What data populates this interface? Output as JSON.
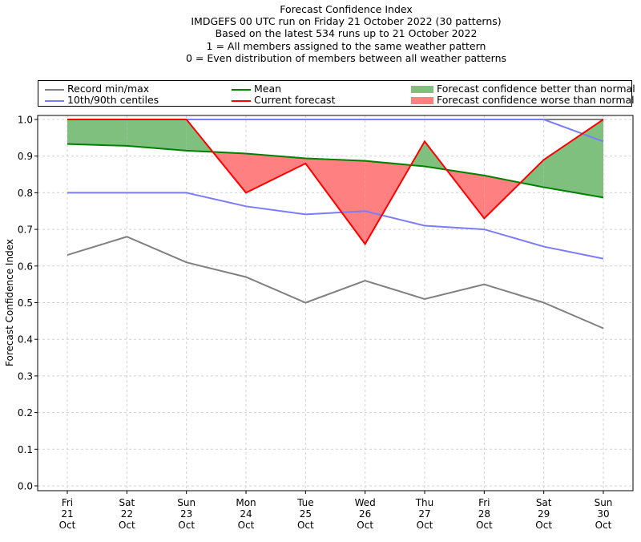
{
  "chart_data": {
    "type": "line",
    "title_lines": [
      "Forecast Confidence Index",
      "IMDGEFS 00 UTC run on Friday 21 October 2022 (30 patterns)",
      "Based on the latest 534 runs up to 21 October 2022",
      "1 = All members assigned to the same weather pattern",
      "0 = Even distribution of members between all weather patterns"
    ],
    "xlabel": "",
    "ylabel": "Forecast Confidence Index",
    "ylim": [
      0.0,
      1.0
    ],
    "yticks": [
      "0.0",
      "0.1",
      "0.2",
      "0.3",
      "0.4",
      "0.5",
      "0.6",
      "0.7",
      "0.8",
      "0.9",
      "1.0"
    ],
    "grid": true,
    "legend_position": "top",
    "categories": [
      {
        "day": "Fri",
        "date": "21",
        "month": "Oct"
      },
      {
        "day": "Sat",
        "date": "22",
        "month": "Oct"
      },
      {
        "day": "Sun",
        "date": "23",
        "month": "Oct"
      },
      {
        "day": "Mon",
        "date": "24",
        "month": "Oct"
      },
      {
        "day": "Tue",
        "date": "25",
        "month": "Oct"
      },
      {
        "day": "Wed",
        "date": "26",
        "month": "Oct"
      },
      {
        "day": "Thu",
        "date": "27",
        "month": "Oct"
      },
      {
        "day": "Fri",
        "date": "28",
        "month": "Oct"
      },
      {
        "day": "Sat",
        "date": "29",
        "month": "Oct"
      },
      {
        "day": "Sun",
        "date": "30",
        "month": "Oct"
      }
    ],
    "series": [
      {
        "name": "Record max",
        "color": "#808080",
        "values": [
          1.0,
          1.0,
          1.0,
          1.0,
          1.0,
          1.0,
          1.0,
          1.0,
          1.0,
          1.0
        ]
      },
      {
        "name": "Record min",
        "color": "#808080",
        "values": [
          0.63,
          0.68,
          0.61,
          0.57,
          0.5,
          0.56,
          0.51,
          0.55,
          0.5,
          0.43
        ]
      },
      {
        "name": "90th centile",
        "color": "#7b7bff",
        "values": [
          1.0,
          1.0,
          1.0,
          1.0,
          1.0,
          1.0,
          1.0,
          1.0,
          1.0,
          0.94
        ]
      },
      {
        "name": "10th centile",
        "color": "#7b7bff",
        "values": [
          0.8,
          0.8,
          0.8,
          0.763,
          0.741,
          0.75,
          0.71,
          0.7,
          0.653,
          0.62
        ]
      },
      {
        "name": "Mean",
        "color": "#008000",
        "values": [
          0.933,
          0.928,
          0.915,
          0.907,
          0.894,
          0.887,
          0.872,
          0.847,
          0.815,
          0.787
        ]
      },
      {
        "name": "Current forecast",
        "color": "#ff0000",
        "values": [
          1.0,
          1.0,
          1.0,
          0.8,
          0.88,
          0.66,
          0.94,
          0.73,
          0.89,
          1.0
        ]
      }
    ],
    "fill_colors": {
      "better": "#7fc07f",
      "worse": "#ff8080"
    },
    "legend": [
      {
        "label": "Record min/max",
        "type": "line",
        "color": "#808080"
      },
      {
        "label": "10th/90th centiles",
        "type": "line",
        "color": "#7b7bff"
      },
      {
        "label": "Mean",
        "type": "line",
        "color": "#008000"
      },
      {
        "label": "Current forecast",
        "type": "line",
        "color": "#ff0000"
      },
      {
        "label": "Forecast confidence better than normal",
        "type": "patch",
        "color": "#7fc07f"
      },
      {
        "label": "Forecast confidence worse than normal",
        "type": "patch",
        "color": "#ff8080"
      }
    ]
  }
}
